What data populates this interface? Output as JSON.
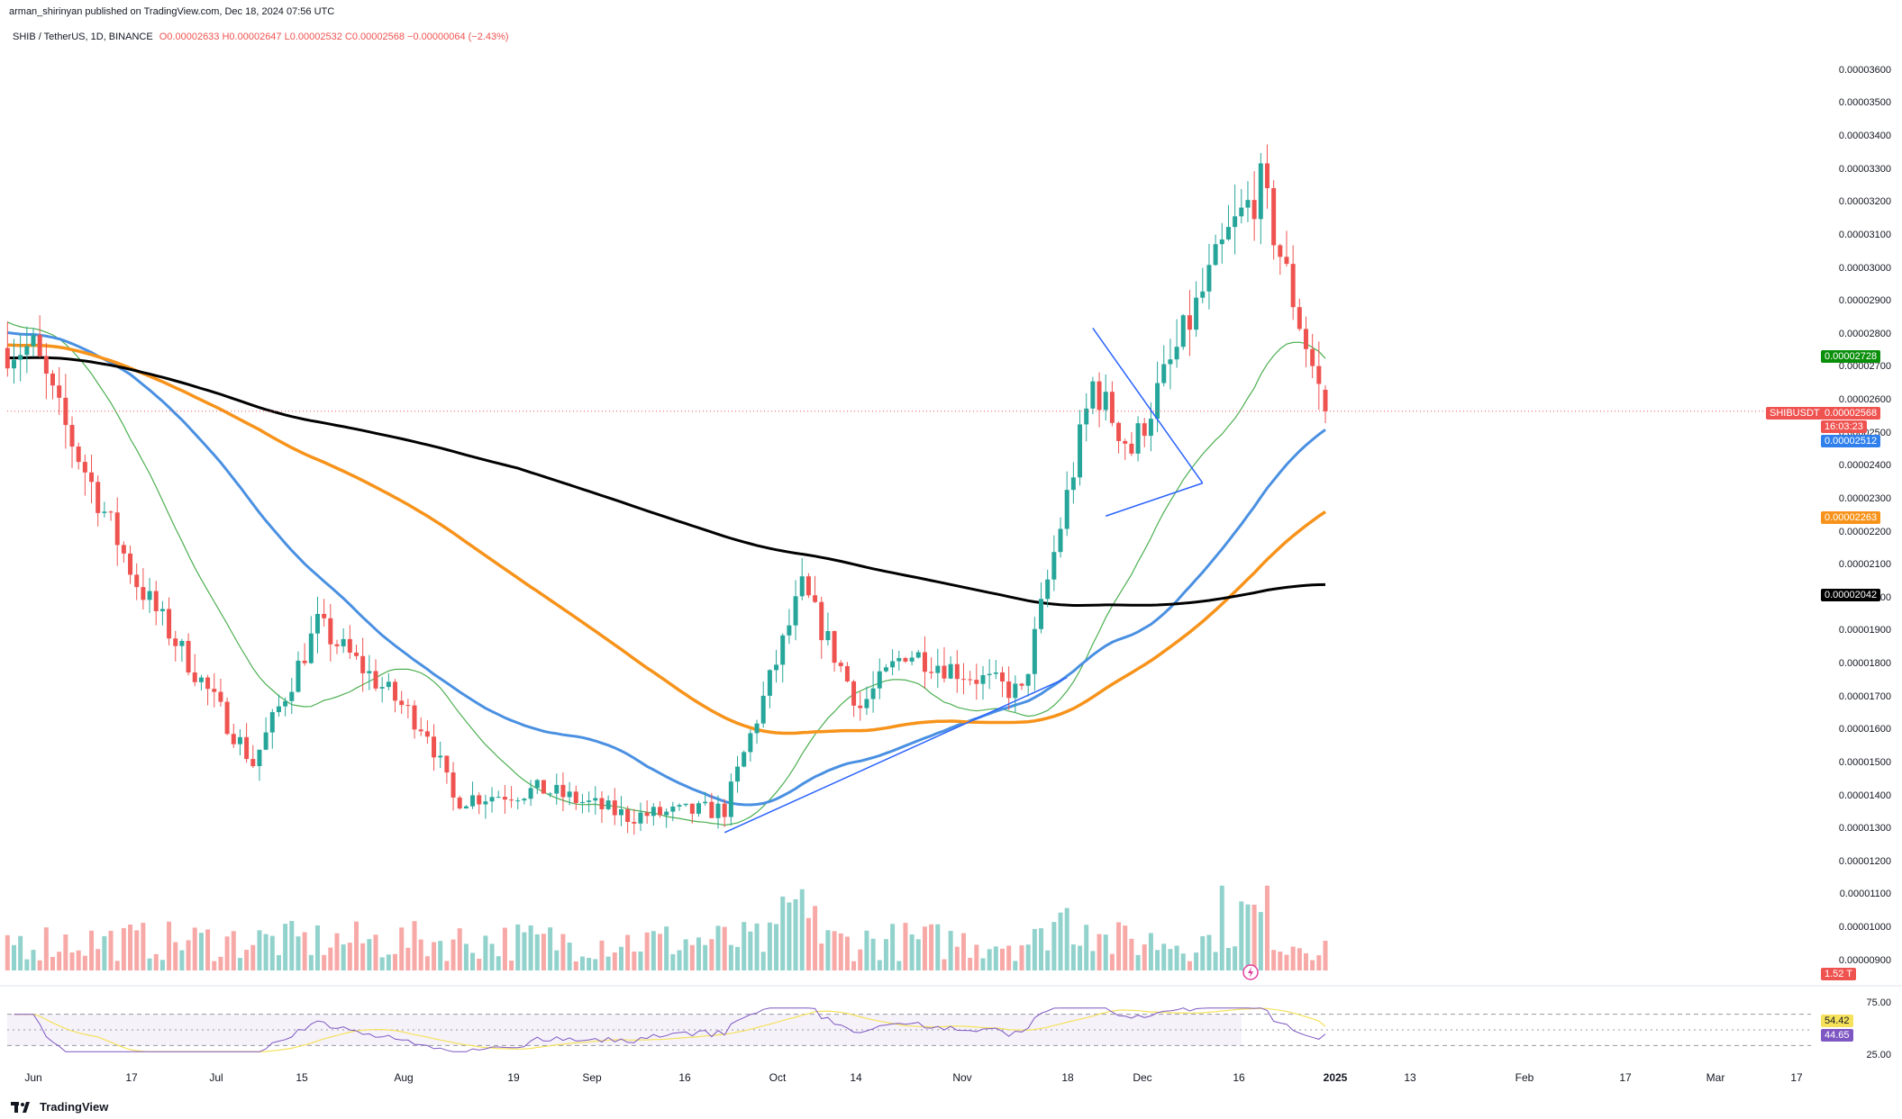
{
  "publish_line": "arman_shirinyan published on TradingView.com, Dec 18, 2024 07:56 UTC",
  "symbol_line": {
    "symbol": "SHIB / TetherUS, 1D, BINANCE",
    "o": "O0.00002633",
    "h": "H0.00002647",
    "l": "L0.00002532",
    "c": "C0.00002568",
    "chg": "−0.00000064 (−2.43%)"
  },
  "price_tags": {
    "green": "0.00002728",
    "symbol_label": "SHIBUSDT",
    "current": "0.00002568",
    "countdown": "16:03:23",
    "blue": "0.00002512",
    "orange": "0.00002263",
    "black": "0.00002042",
    "volume": "1.52 T"
  },
  "rsi_tags": {
    "yellow": "54.42",
    "purple": "44.65"
  },
  "footer_brand": "TradingView",
  "colors": {
    "up": "#26a69a",
    "down": "#ef5350",
    "ma_green": "#4caf50",
    "ma_blue": "#4a90e2",
    "ma_orange": "#f7931a",
    "ma_black": "#000000",
    "rsi_line": "#7e57c2",
    "rsi_ma": "#f5e15a"
  },
  "chart_data": [
    {
      "type": "candlestick",
      "title": "SHIB / TetherUS, 1D, BINANCE",
      "y_axis_ticks": [
        "0.00000900",
        "0.00001000",
        "0.00001100",
        "0.00001200",
        "0.00001300",
        "0.00001400",
        "0.00001500",
        "0.00001600",
        "0.00001700",
        "0.00001800",
        "0.00001900",
        "0.00002000",
        "0.00002100",
        "0.00002200",
        "0.00002300",
        "0.00002400",
        "0.00002500",
        "0.00002600",
        "0.00002700",
        "0.00002800",
        "0.00002900",
        "0.00003000",
        "0.00003100",
        "0.00003200",
        "0.00003300",
        "0.00003400",
        "0.00003500",
        "0.00003600"
      ],
      "x_axis_ticks": [
        "Jun",
        "17",
        "Jul",
        "15",
        "Aug",
        "19",
        "Sep",
        "16",
        "Oct",
        "14",
        "Nov",
        "18",
        "Dec",
        "16",
        "2025",
        "13",
        "Feb",
        "17",
        "Mar",
        "17"
      ],
      "ylim": [
        8.8e-06,
        3.665e-05
      ],
      "price_key_points": [
        {
          "x": "Jun",
          "close": 2.76e-05
        },
        {
          "x": "Jun 5",
          "close": 2.56e-05
        },
        {
          "x": "Jun 17",
          "close": 2.05e-05
        },
        {
          "x": "Jun 27",
          "close": 1.75e-05
        },
        {
          "x": "Jul 5",
          "close": 1.5e-05
        },
        {
          "x": "Jul 15",
          "close": 1.92e-05
        },
        {
          "x": "Aug",
          "close": 1.6e-05
        },
        {
          "x": "Aug 5",
          "close": 1.39e-05
        },
        {
          "x": "Aug 19",
          "close": 1.42e-05
        },
        {
          "x": "Sep",
          "close": 1.34e-05
        },
        {
          "x": "Sep 16",
          "close": 1.36e-05
        },
        {
          "x": "Sep 28",
          "close": 2.03e-05
        },
        {
          "x": "Oct 7",
          "close": 1.67e-05
        },
        {
          "x": "Oct 14",
          "close": 1.84e-05
        },
        {
          "x": "Nov",
          "close": 1.71e-05
        },
        {
          "x": "Nov 12",
          "close": 2.65e-05
        },
        {
          "x": "Nov 18",
          "close": 2.45e-05
        },
        {
          "x": "Dec 3",
          "close": 3.1e-05
        },
        {
          "x": "Dec 8",
          "close": 3.25e-05
        },
        {
          "x": "Dec 18",
          "close": 2.568e-05
        }
      ],
      "moving_averages": [
        {
          "name": "MA green",
          "color": "#4caf50",
          "last": 2.728e-05
        },
        {
          "name": "MA blue",
          "color": "#4a90e2",
          "last": 2.512e-05
        },
        {
          "name": "MA orange",
          "color": "#f7931a",
          "last": 2.263e-05
        },
        {
          "name": "MA black",
          "color": "#000000",
          "last": 2.042e-05
        }
      ],
      "trendlines": [
        {
          "from": {
            "x": "Sep 16",
            "y": 1.29e-05
          },
          "to": {
            "x": "Nov 8",
            "y": 1.76e-05
          }
        },
        {
          "from": {
            "x": "Nov 12",
            "y": 2.82e-05
          },
          "to": {
            "x": "Nov 29",
            "y": 2.35e-05
          }
        },
        {
          "from": {
            "x": "Nov 14",
            "y": 2.25e-05
          },
          "to": {
            "x": "Nov 29",
            "y": 2.35e-05
          }
        }
      ],
      "volume_last": "1.52 T"
    },
    {
      "type": "line",
      "title": "RSI",
      "y_axis_ticks": [
        "75.00",
        "25.00"
      ],
      "ylim": [
        20,
        80
      ],
      "series": [
        {
          "color": "#7e57c2",
          "last": 44.65
        },
        {
          "color": "#f5e15a",
          "last": 54.42
        }
      ]
    }
  ]
}
